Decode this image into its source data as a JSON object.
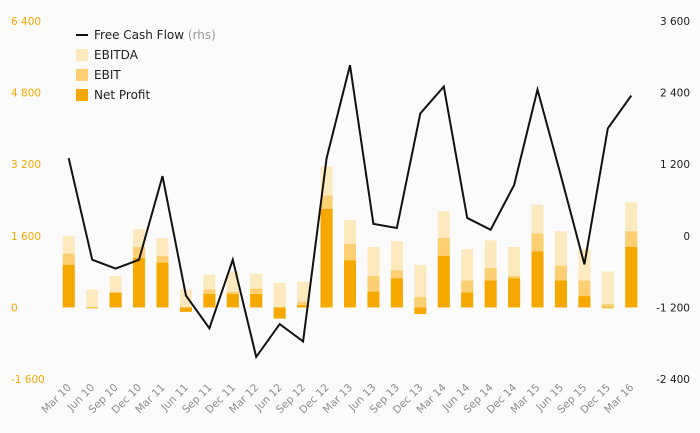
{
  "chart_data": {
    "type": "bar",
    "categories": [
      "Mar 10",
      "Jun 10",
      "Sep 10",
      "Dec 10",
      "Mar 11",
      "Jun 11",
      "Sep 11",
      "Dec 11",
      "Mar 12",
      "Jun 12",
      "Sep 12",
      "Dec 12",
      "Mar 13",
      "Jun 13",
      "Sep 13",
      "Dec 13",
      "Mar 14",
      "Jun 14",
      "Sep 14",
      "Dec 14",
      "Mar 15",
      "Jun 15",
      "Sep 15",
      "Dec 15",
      "Mar 16"
    ],
    "series": [
      {
        "name": "EBITDA",
        "kind": "bar",
        "axis": "left",
        "color": "#fde9be",
        "values": [
          1600,
          400,
          700,
          1750,
          1550,
          400,
          730,
          800,
          750,
          550,
          570,
          3150,
          1950,
          1350,
          1480,
          950,
          2150,
          1300,
          1500,
          1350,
          2300,
          1700,
          1300,
          800,
          2350
        ]
      },
      {
        "name": "EBIT",
        "kind": "bar",
        "axis": "left",
        "color": "#fbcf72",
        "values": [
          1200,
          0,
          330,
          1350,
          1150,
          -70,
          400,
          350,
          420,
          -10,
          130,
          2500,
          1420,
          700,
          830,
          230,
          1550,
          600,
          880,
          700,
          1650,
          930,
          600,
          70,
          1700
        ]
      },
      {
        "name": "Net Profit",
        "kind": "bar",
        "axis": "left",
        "color": "#f5a800",
        "values": [
          950,
          -20,
          330,
          1100,
          1000,
          -100,
          300,
          300,
          300,
          -250,
          50,
          2200,
          1050,
          350,
          650,
          -150,
          1150,
          330,
          600,
          650,
          1250,
          600,
          250,
          -20,
          1350
        ]
      },
      {
        "name": "Free Cash Flow",
        "suffix": "(rhs)",
        "kind": "line",
        "axis": "right",
        "color": "#111111",
        "values": [
          1300,
          -400,
          -550,
          -400,
          1000,
          -1000,
          -1550,
          -400,
          -2030,
          -1480,
          -1770,
          1300,
          2860,
          200,
          130,
          2050,
          2500,
          300,
          100,
          850,
          2450,
          1000,
          -480,
          1800,
          2350
        ]
      }
    ],
    "yaxis_left": {
      "min": -1600,
      "max": 6400,
      "ticks": [
        -1600,
        0,
        1600,
        3200,
        4800,
        6400
      ],
      "tick_labels": [
        "-1 600",
        "0",
        "1 600",
        "3 200",
        "4 800",
        "6 400"
      ],
      "color": "#f5a800"
    },
    "yaxis_right": {
      "min": -2400,
      "max": 3600,
      "ticks": [
        -2400,
        -1200,
        0,
        1200,
        2400,
        3600
      ],
      "tick_labels": [
        "-2 400",
        "-1 200",
        "0",
        "1 200",
        "2 400",
        "3 600"
      ],
      "color": "#1f1f1f"
    },
    "grid": false,
    "legend_position": "top-left"
  }
}
